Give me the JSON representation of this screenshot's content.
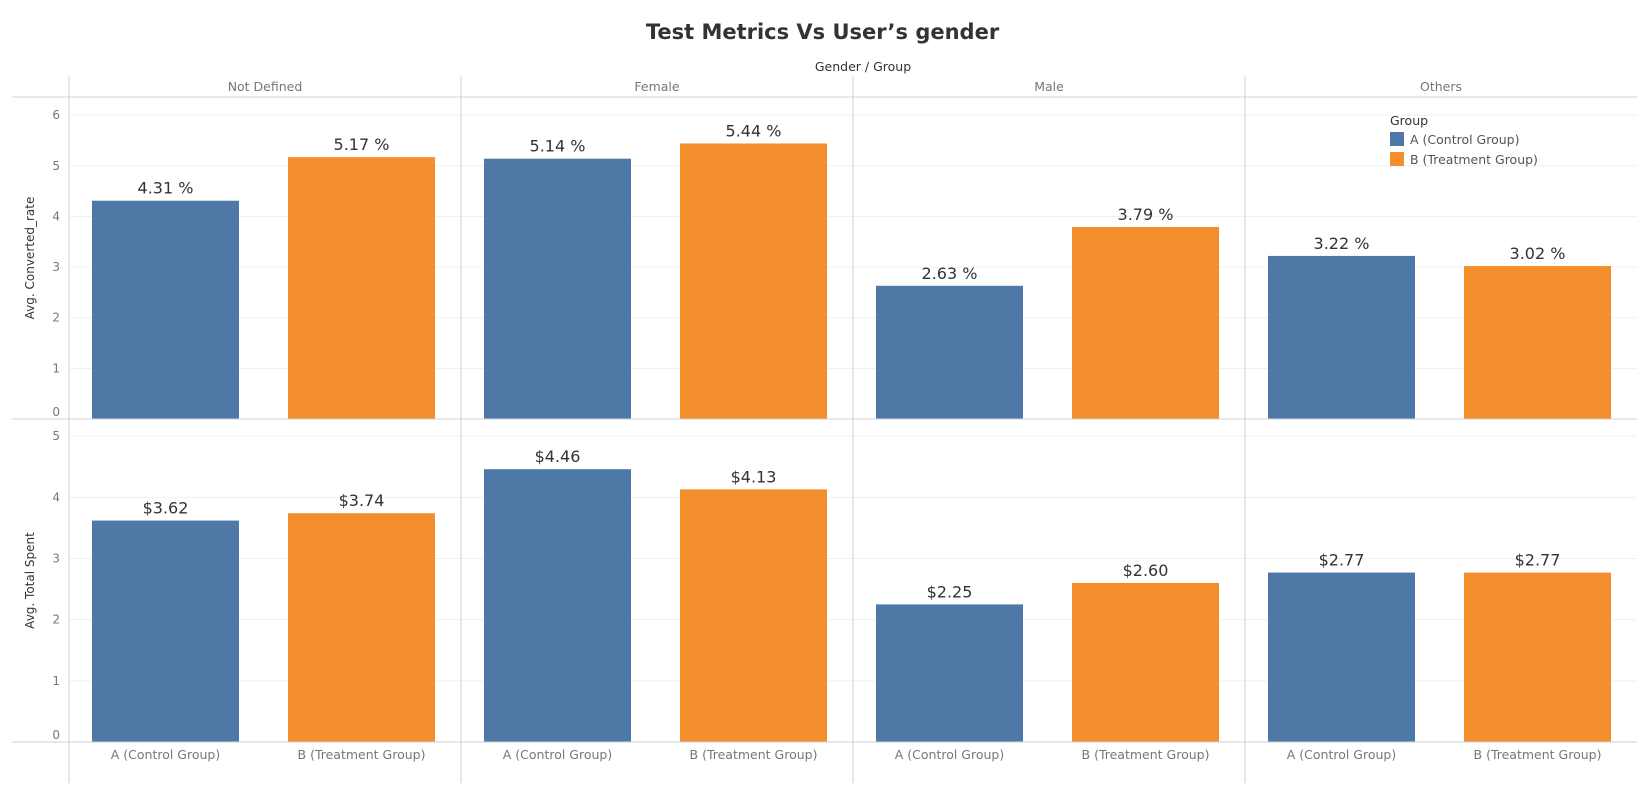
{
  "chart_data": {
    "type": "bar",
    "title": "Test Metrics Vs User’s gender",
    "column_field_label": "Gender  /  Group",
    "panels": [
      "Not Defined",
      "Female",
      "Male",
      "Others"
    ],
    "categories": [
      "A (Control Group)",
      "B (Treatment Group)"
    ],
    "colors": {
      "A (Control Group)": "#4e79a7",
      "B (Treatment Group)": "#f28e2b"
    },
    "rows": [
      {
        "ylabel": "Avg. Converted_rate",
        "ylim": [
          0,
          6.2
        ],
        "yticks": [
          0,
          1,
          2,
          3,
          4,
          5,
          6
        ],
        "values": [
          [
            4.31,
            5.17
          ],
          [
            5.14,
            5.44
          ],
          [
            2.63,
            3.79
          ],
          [
            3.22,
            3.02
          ]
        ],
        "labels": [
          [
            "4.31 %",
            "5.17 %"
          ],
          [
            "5.14 %",
            "5.44 %"
          ],
          [
            "2.63 %",
            "3.79 %"
          ],
          [
            "3.22 %",
            "3.02 %"
          ]
        ]
      },
      {
        "ylabel": "Avg. Total Spent",
        "ylim": [
          0,
          5.15
        ],
        "yticks": [
          0,
          1,
          2,
          3,
          4,
          5
        ],
        "values": [
          [
            3.62,
            3.74
          ],
          [
            4.46,
            4.13
          ],
          [
            2.25,
            2.6
          ],
          [
            2.77,
            2.77
          ]
        ],
        "labels": [
          [
            "$3.62",
            "$3.74"
          ],
          [
            "$4.46",
            "$4.13"
          ],
          [
            "$2.25",
            "$2.60"
          ],
          [
            "$2.77",
            "$2.77"
          ]
        ]
      }
    ],
    "grid": true,
    "legend": {
      "title": "Group",
      "position": "top-right",
      "entries": [
        "A (Control Group)",
        "B (Treatment Group)"
      ]
    }
  }
}
